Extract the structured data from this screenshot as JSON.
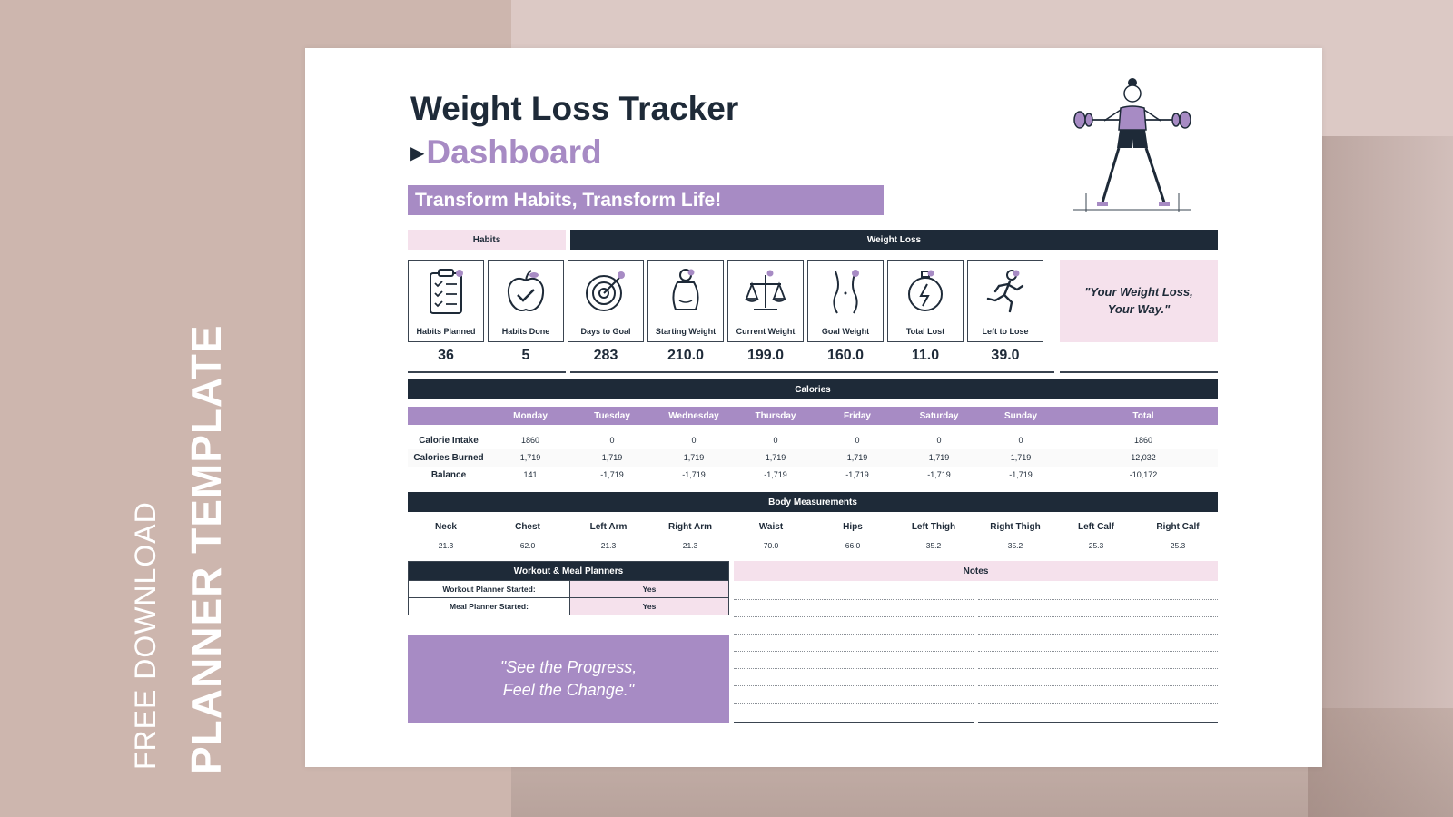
{
  "side": {
    "line1": "FREE DOWNLOAD",
    "line2": "PLANNER TEMPLATE"
  },
  "header": {
    "title": "Weight Loss Tracker",
    "subtitle": "Dashboard",
    "banner": "Transform Habits, Transform Life!"
  },
  "sections": {
    "habits": "Habits",
    "weight_loss": "Weight Loss",
    "calories": "Calories",
    "body": "Body Measurements",
    "planners": "Workout & Meal Planners",
    "notes": "Notes"
  },
  "stats": [
    {
      "label": "Habits Planned",
      "value": "36",
      "icon": "clipboard-checklist-icon"
    },
    {
      "label": "Habits Done",
      "value": "5",
      "icon": "apple-check-icon"
    },
    {
      "label": "Days to Goal",
      "value": "283",
      "icon": "target-icon"
    },
    {
      "label": "Starting Weight",
      "value": "210.0",
      "icon": "body-icon"
    },
    {
      "label": "Current Weight",
      "value": "199.0",
      "icon": "scale-icon"
    },
    {
      "label": "Goal Weight",
      "value": "160.0",
      "icon": "waist-icon"
    },
    {
      "label": "Total Lost",
      "value": "11.0",
      "icon": "stopwatch-icon"
    },
    {
      "label": "Left to Lose",
      "value": "39.0",
      "icon": "runner-icon"
    }
  ],
  "quote1": "\"Your Weight Loss, Your Way.\"",
  "calories": {
    "columns": [
      "Monday",
      "Tuesday",
      "Wednesday",
      "Thursday",
      "Friday",
      "Saturday",
      "Sunday",
      "Total"
    ],
    "rows": [
      {
        "label": "Calorie Intake",
        "values": [
          "1860",
          "0",
          "0",
          "0",
          "0",
          "0",
          "0",
          "1860"
        ]
      },
      {
        "label": "Calories Burned",
        "values": [
          "1,719",
          "1,719",
          "1,719",
          "1,719",
          "1,719",
          "1,719",
          "1,719",
          "12,032"
        ]
      },
      {
        "label": "Balance",
        "values": [
          "141",
          "-1,719",
          "-1,719",
          "-1,719",
          "-1,719",
          "-1,719",
          "-1,719",
          "-10,172"
        ]
      }
    ]
  },
  "body": [
    {
      "label": "Neck",
      "value": "21.3"
    },
    {
      "label": "Chest",
      "value": "62.0"
    },
    {
      "label": "Left Arm",
      "value": "21.3"
    },
    {
      "label": "Right Arm",
      "value": "21.3"
    },
    {
      "label": "Waist",
      "value": "70.0"
    },
    {
      "label": "Hips",
      "value": "66.0"
    },
    {
      "label": "Left Thigh",
      "value": "35.2"
    },
    {
      "label": "Right Thigh",
      "value": "35.2"
    },
    {
      "label": "Left Calf",
      "value": "25.3"
    },
    {
      "label": "Right Calf",
      "value": "25.3"
    }
  ],
  "planners": [
    {
      "label": "Workout Planner Started:",
      "value": "Yes"
    },
    {
      "label": "Meal Planner Started:",
      "value": "Yes"
    }
  ],
  "quote2_line1": "\"See the Progress,",
  "quote2_line2": "Feel the Change.\"",
  "colors": {
    "accent": "#a78bc4",
    "dark": "#1e2a38",
    "pink": "#f5e1ec",
    "background": "#dcc9c5"
  }
}
